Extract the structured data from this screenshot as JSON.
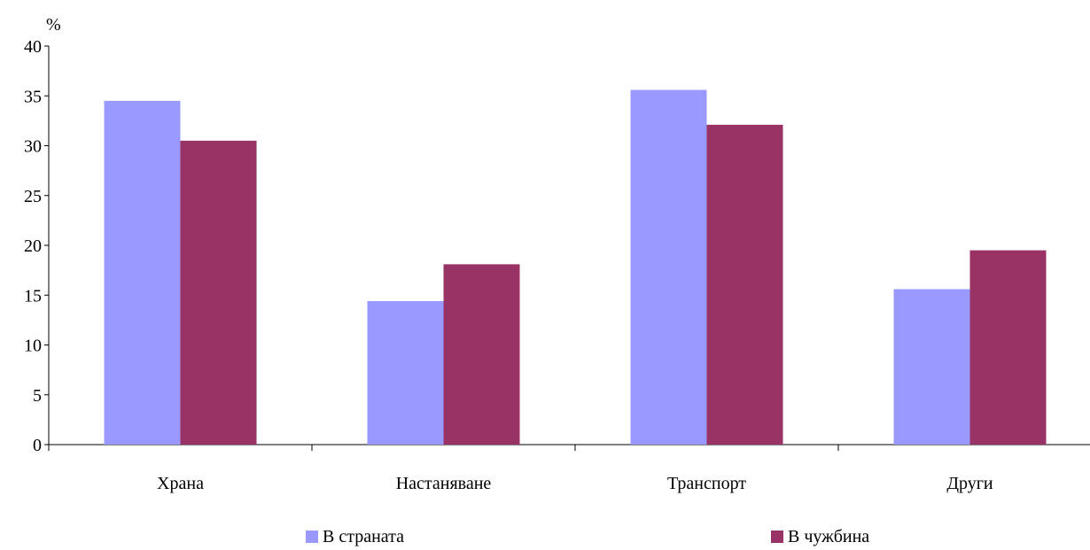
{
  "chart_data": {
    "type": "bar",
    "ylabel": "%",
    "ylim": [
      0,
      40
    ],
    "yticks": [
      0,
      5,
      10,
      15,
      20,
      25,
      30,
      35,
      40
    ],
    "categories": [
      "Храна",
      "Настаняване",
      "Транспорт",
      "Други"
    ],
    "series": [
      {
        "name": "В страната",
        "color": "#9999ff",
        "values": [
          34.5,
          14.4,
          35.6,
          15.6
        ]
      },
      {
        "name": "В чужбина",
        "color": "#993366",
        "values": [
          30.5,
          18.1,
          32.1,
          19.5
        ]
      }
    ],
    "grid": false,
    "legend_position": "bottom"
  }
}
